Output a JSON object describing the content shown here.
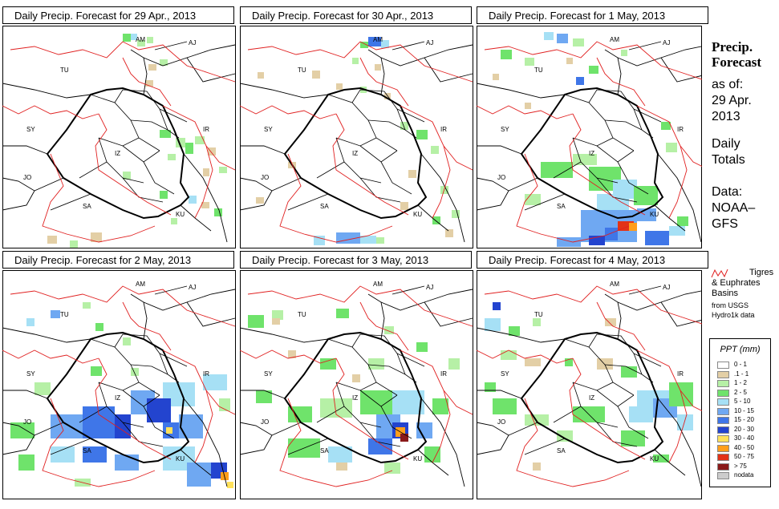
{
  "panels": [
    {
      "title": "Daily Precip. Forecast for  29 Apr., 2013"
    },
    {
      "title": "Daily Precip. Forecast for  30 Apr., 2013"
    },
    {
      "title": "Daily Precip. Forecast for  1 May, 2013"
    },
    {
      "title": "Daily Precip. Forecast for  2 May, 2013"
    },
    {
      "title": "Daily Precip. Forecast for  3 May, 2013"
    },
    {
      "title": "Daily Precip. Forecast for  4 May, 2013"
    }
  ],
  "country_labels": [
    "AM",
    "AJ",
    "TU",
    "SY",
    "IR",
    "IZ",
    "JO",
    "SA",
    "KU"
  ],
  "sidebar": {
    "title_line1": "Precip.",
    "title_line2": "Forecast",
    "asof": "as of:",
    "date_line1": "29 Apr.",
    "date_line2": "2013",
    "daily_line1": "Daily",
    "daily_line2": "Totals",
    "data_line1": "Data:",
    "data_line2": "NOAA–",
    "data_line3": "GFS"
  },
  "basin_legend": {
    "line1": "Tigres",
    "line2": "& Euphrates",
    "line3": "Basins",
    "line4": "from USGS",
    "line5": "Hydro1k data"
  },
  "ppt_legend": {
    "title": "PPT (mm)",
    "items": [
      {
        "label": "0 - 1",
        "color": "#ffffff"
      },
      {
        "label": ".1 - 1",
        "color": "#e3cfa6"
      },
      {
        "label": "1 - 2",
        "color": "#b6f0a6"
      },
      {
        "label": "2 - 5",
        "color": "#6fe36b"
      },
      {
        "label": "5 - 10",
        "color": "#a6e0f5"
      },
      {
        "label": "10 - 15",
        "color": "#6fa8f2"
      },
      {
        "label": "15 - 20",
        "color": "#3f76e8"
      },
      {
        "label": "20 - 30",
        "color": "#2344cf"
      },
      {
        "label": "30 - 40",
        "color": "#ffe15a"
      },
      {
        "label": "40 - 50",
        "color": "#ff9e1a"
      },
      {
        "label": "50 - 75",
        "color": "#e23217"
      },
      {
        "label": "> 75",
        "color": "#8a1a1a"
      },
      {
        "label": "nodata",
        "color": "#cccccc"
      }
    ]
  },
  "colors": {
    "basin_line": "#e02020",
    "border_line": "#000000"
  }
}
